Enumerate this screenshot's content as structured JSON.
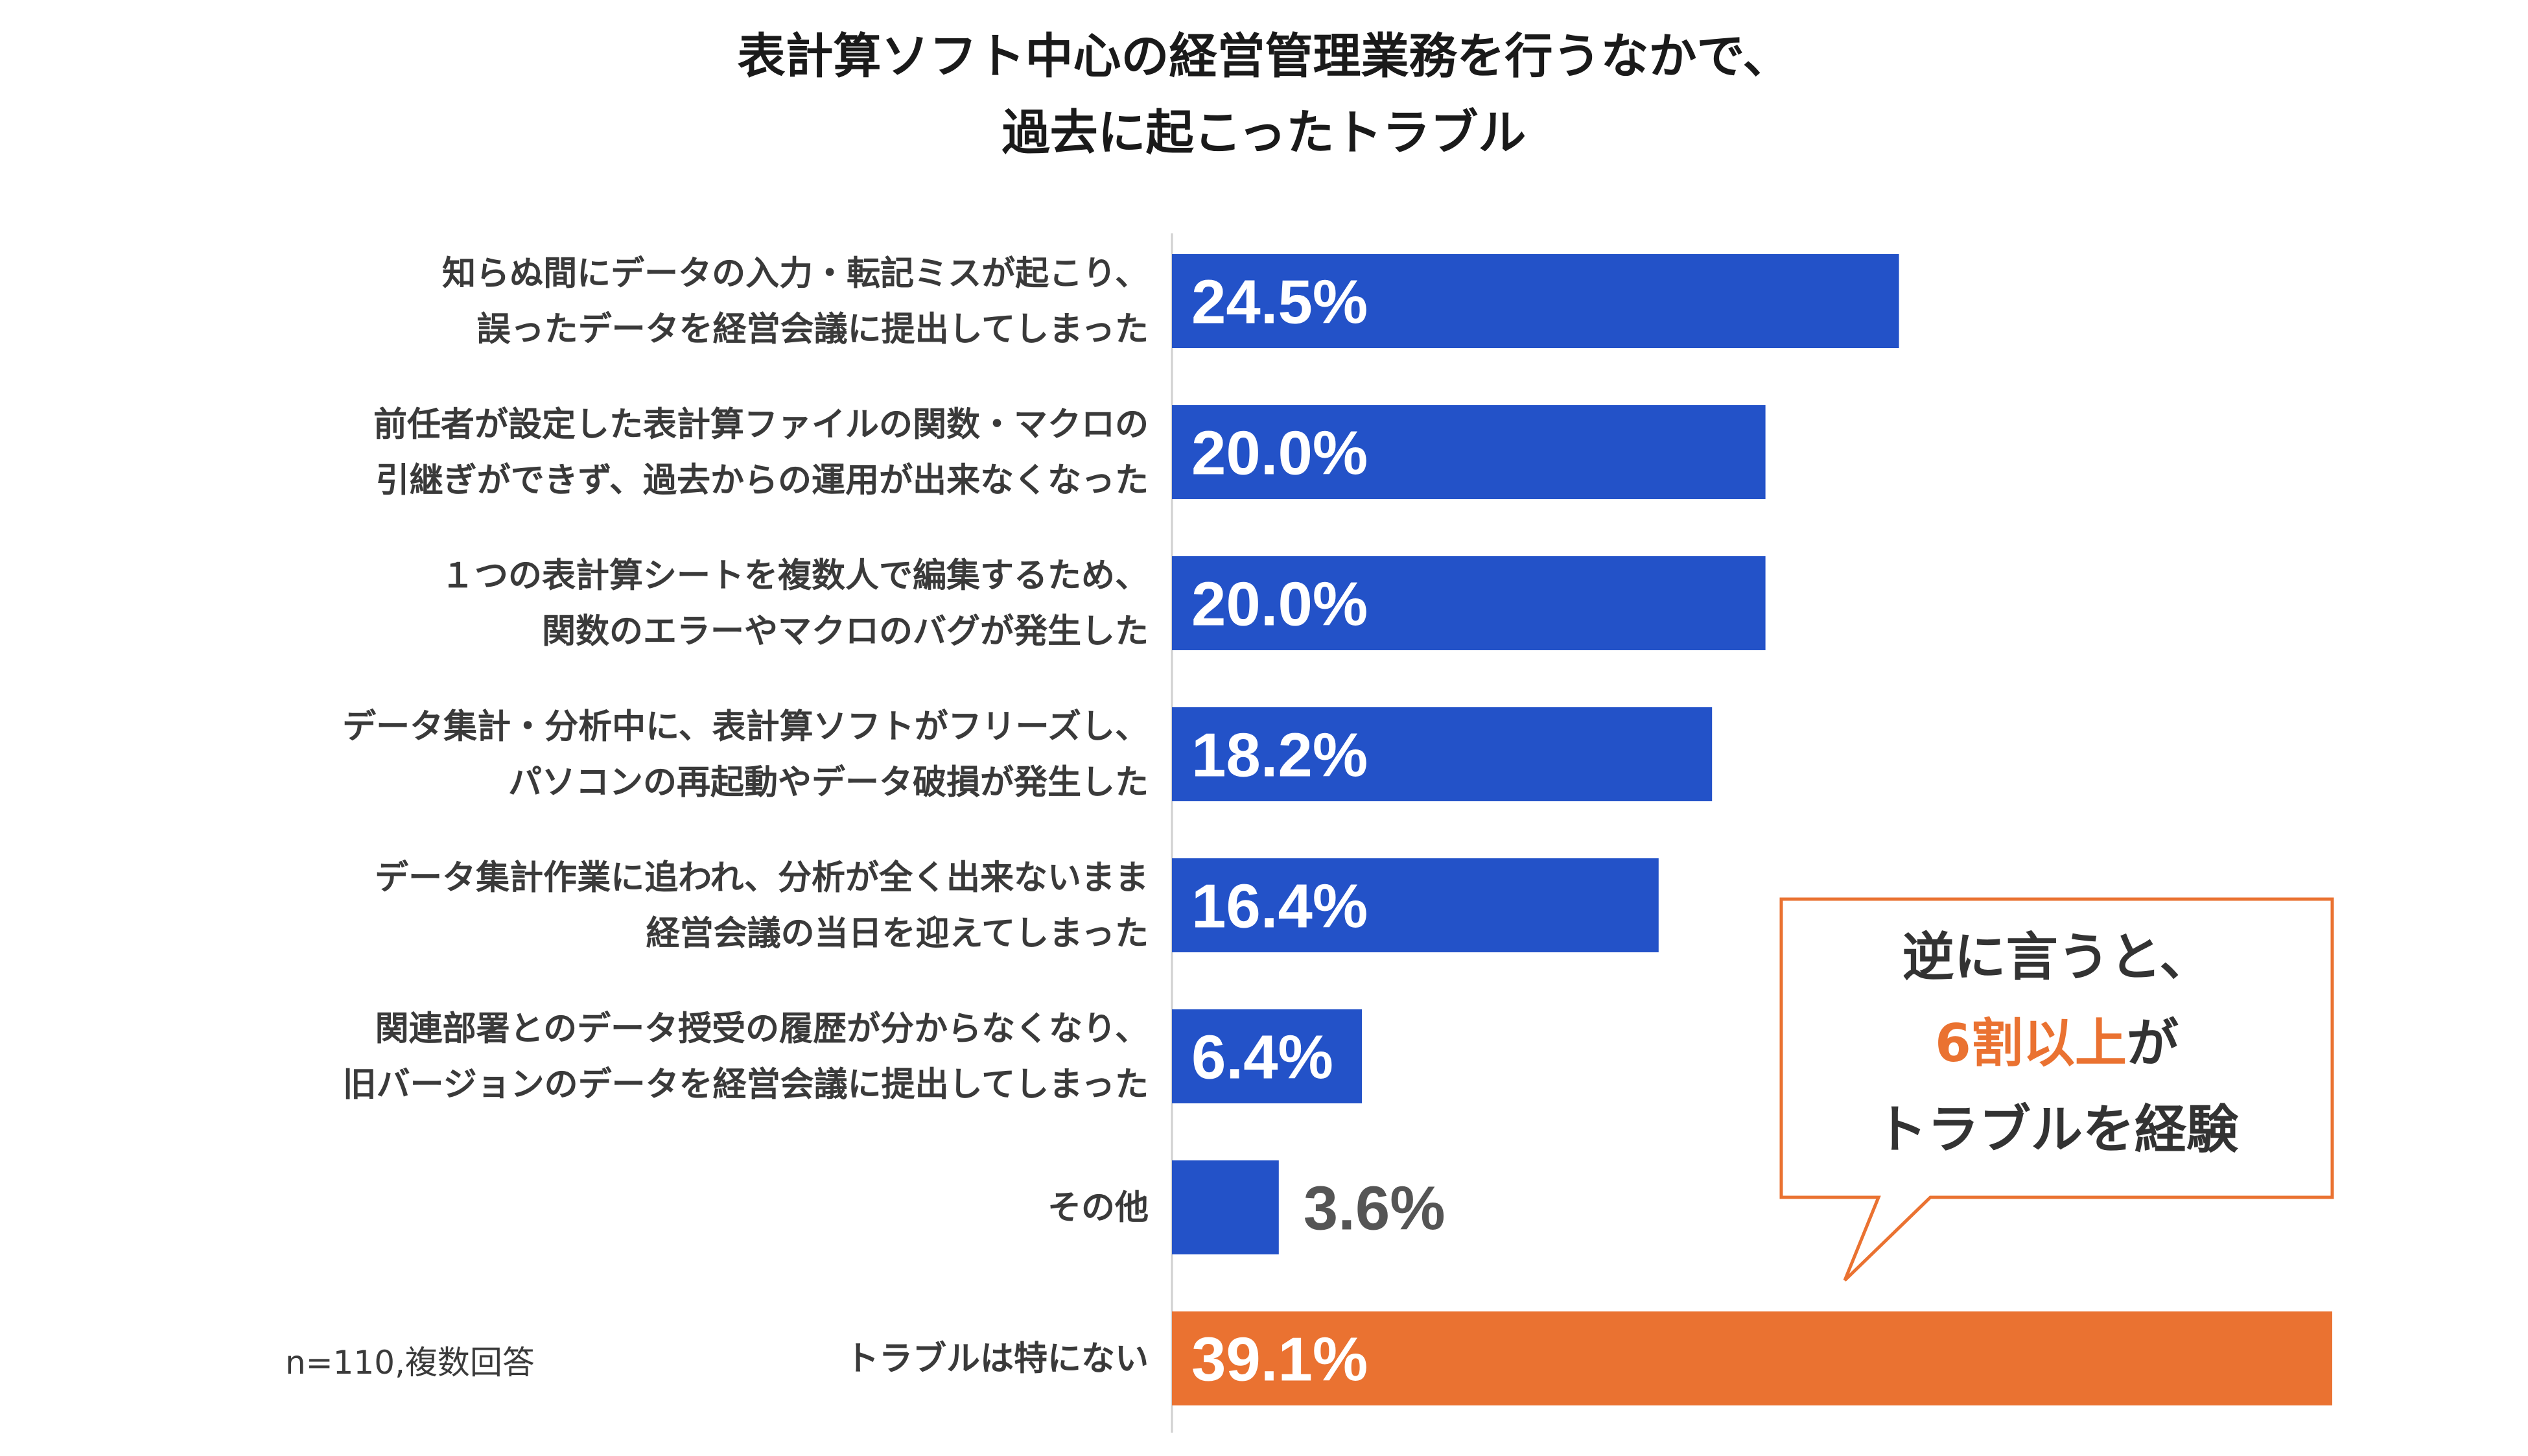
{
  "title_lines": [
    "表計算ソフト中心の経営管理業務を行うなかで、",
    "過去に起こったトラブル"
  ],
  "note": "n=110,複数回答",
  "callout": {
    "line1": "逆に言うと、",
    "line2_highlight": "6割以上",
    "line2_rest": "が",
    "line3": "トラブルを経験"
  },
  "colors": {
    "bar": "#2352c8",
    "highlight_bar": "#ea7231",
    "value_inside": "#ffffff",
    "value_outside": "#555555",
    "callout_border": "#ea7231",
    "accent_text": "#ea7231",
    "axis": "#d0d0d0"
  },
  "chart_data": {
    "type": "bar",
    "orientation": "horizontal",
    "title": "表計算ソフト中心の経営管理業務を行うなかで、過去に起こったトラブル",
    "categories": [
      [
        "知らぬ間にデータの入力・転記ミスが起こり、",
        "誤ったデータを経営会議に提出してしまった"
      ],
      [
        "前任者が設定した表計算ファイルの関数・マクロの",
        "引継ぎができず、過去からの運用が出来なくなった"
      ],
      [
        "１つの表計算シートを複数人で編集するため、",
        "関数のエラーやマクロのバグが発生した"
      ],
      [
        "データ集計・分析中に、表計算ソフトがフリーズし、",
        "パソコンの再起動やデータ破損が発生した"
      ],
      [
        "データ集計作業に追われ、分析が全く出来ないまま",
        "経営会議の当日を迎えてしまった"
      ],
      [
        "関連部署とのデータ授受の履歴が分からなくなり、",
        "旧バージョンのデータを経営会議に提出してしまった"
      ],
      [
        "その他"
      ],
      [
        "トラブルは特にない"
      ]
    ],
    "values": [
      24.5,
      20.0,
      20.0,
      18.2,
      16.4,
      6.4,
      3.6,
      39.1
    ],
    "value_labels": [
      "24.5%",
      "20.0%",
      "20.0%",
      "18.2%",
      "16.4%",
      "6.4%",
      "3.6%",
      "39.1%"
    ],
    "highlight_index": 7,
    "unit": "%",
    "xlim": [
      0,
      39.1
    ]
  }
}
